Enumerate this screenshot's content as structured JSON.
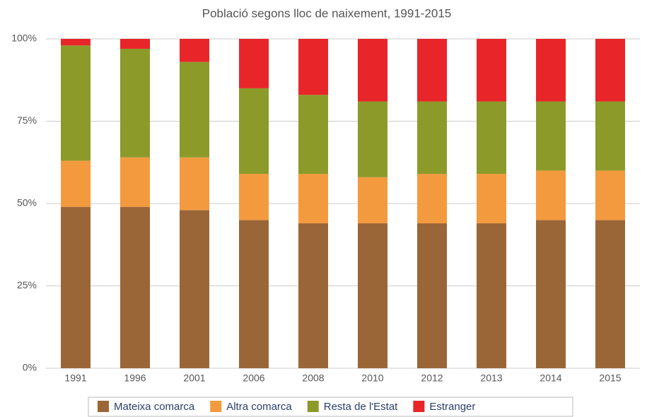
{
  "chart_data": {
    "type": "stacked_bar",
    "title": "Població segons lloc de naixement, 1991-2015",
    "categories": [
      "1991",
      "1996",
      "2001",
      "2006",
      "2008",
      "2010",
      "2012",
      "2013",
      "2014",
      "2015"
    ],
    "series": [
      {
        "name": "Mateixa comarca",
        "color": "#9b6637",
        "values": [
          49,
          49,
          48,
          45,
          44,
          44,
          44,
          44,
          45,
          45
        ]
      },
      {
        "name": "Altra comarca",
        "color": "#f39a3f",
        "values": [
          14,
          15,
          16,
          14,
          15,
          14,
          15,
          15,
          15,
          15
        ]
      },
      {
        "name": "Resta de l'Estat",
        "color": "#8c9a2a",
        "values": [
          35,
          33,
          29,
          26,
          24,
          23,
          22,
          22,
          21,
          21
        ]
      },
      {
        "name": "Estranger",
        "color": "#e8262a",
        "values": [
          2,
          3,
          7,
          15,
          17,
          19,
          19,
          19,
          19,
          19
        ]
      }
    ],
    "ylim": [
      0,
      100
    ],
    "yticks": [
      {
        "value": 0,
        "label": "0%"
      },
      {
        "value": 25,
        "label": "25%"
      },
      {
        "value": 50,
        "label": "50%"
      },
      {
        "value": 75,
        "label": "75%"
      },
      {
        "value": 100,
        "label": "100%"
      }
    ],
    "grid": true,
    "legend": "bottom"
  }
}
